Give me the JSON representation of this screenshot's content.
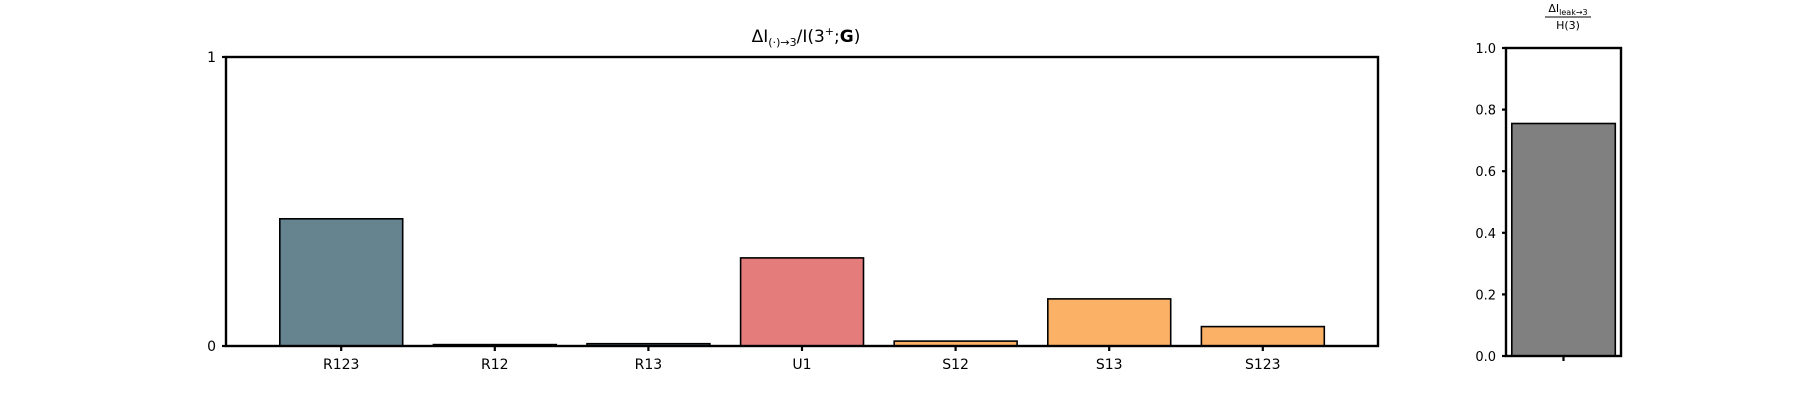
{
  "chart_data": [
    {
      "type": "bar",
      "title": {
        "prefix": "ΔI",
        "sub": "(·)→3",
        "mid": "/I(3",
        "sup": "+",
        "tail": ";",
        "bold": "G",
        "close": ")"
      },
      "categories": [
        "R123",
        "R12",
        "R13",
        "U1",
        "S12",
        "S13",
        "S123"
      ],
      "values": [
        0.44,
        0.005,
        0.008,
        0.305,
        0.017,
        0.163,
        0.067
      ],
      "colors": [
        "#668390",
        "#668390",
        "#668390",
        "#e47c7b",
        "#fbb266",
        "#fbb266",
        "#fbb266"
      ],
      "yticks": [
        "0",
        "1"
      ],
      "ylim": [
        0,
        1
      ],
      "grid": false
    },
    {
      "type": "bar",
      "title": {
        "num_prefix": "ΔI",
        "num_sub": "leak→3",
        "den": "H(3)"
      },
      "categories": [
        ""
      ],
      "values": [
        0.755
      ],
      "colors": [
        "#808080"
      ],
      "yticks": [
        "0.0",
        "0.2",
        "0.4",
        "0.6",
        "0.8",
        "1.0"
      ],
      "ylim": [
        0,
        1
      ],
      "grid": false
    }
  ]
}
